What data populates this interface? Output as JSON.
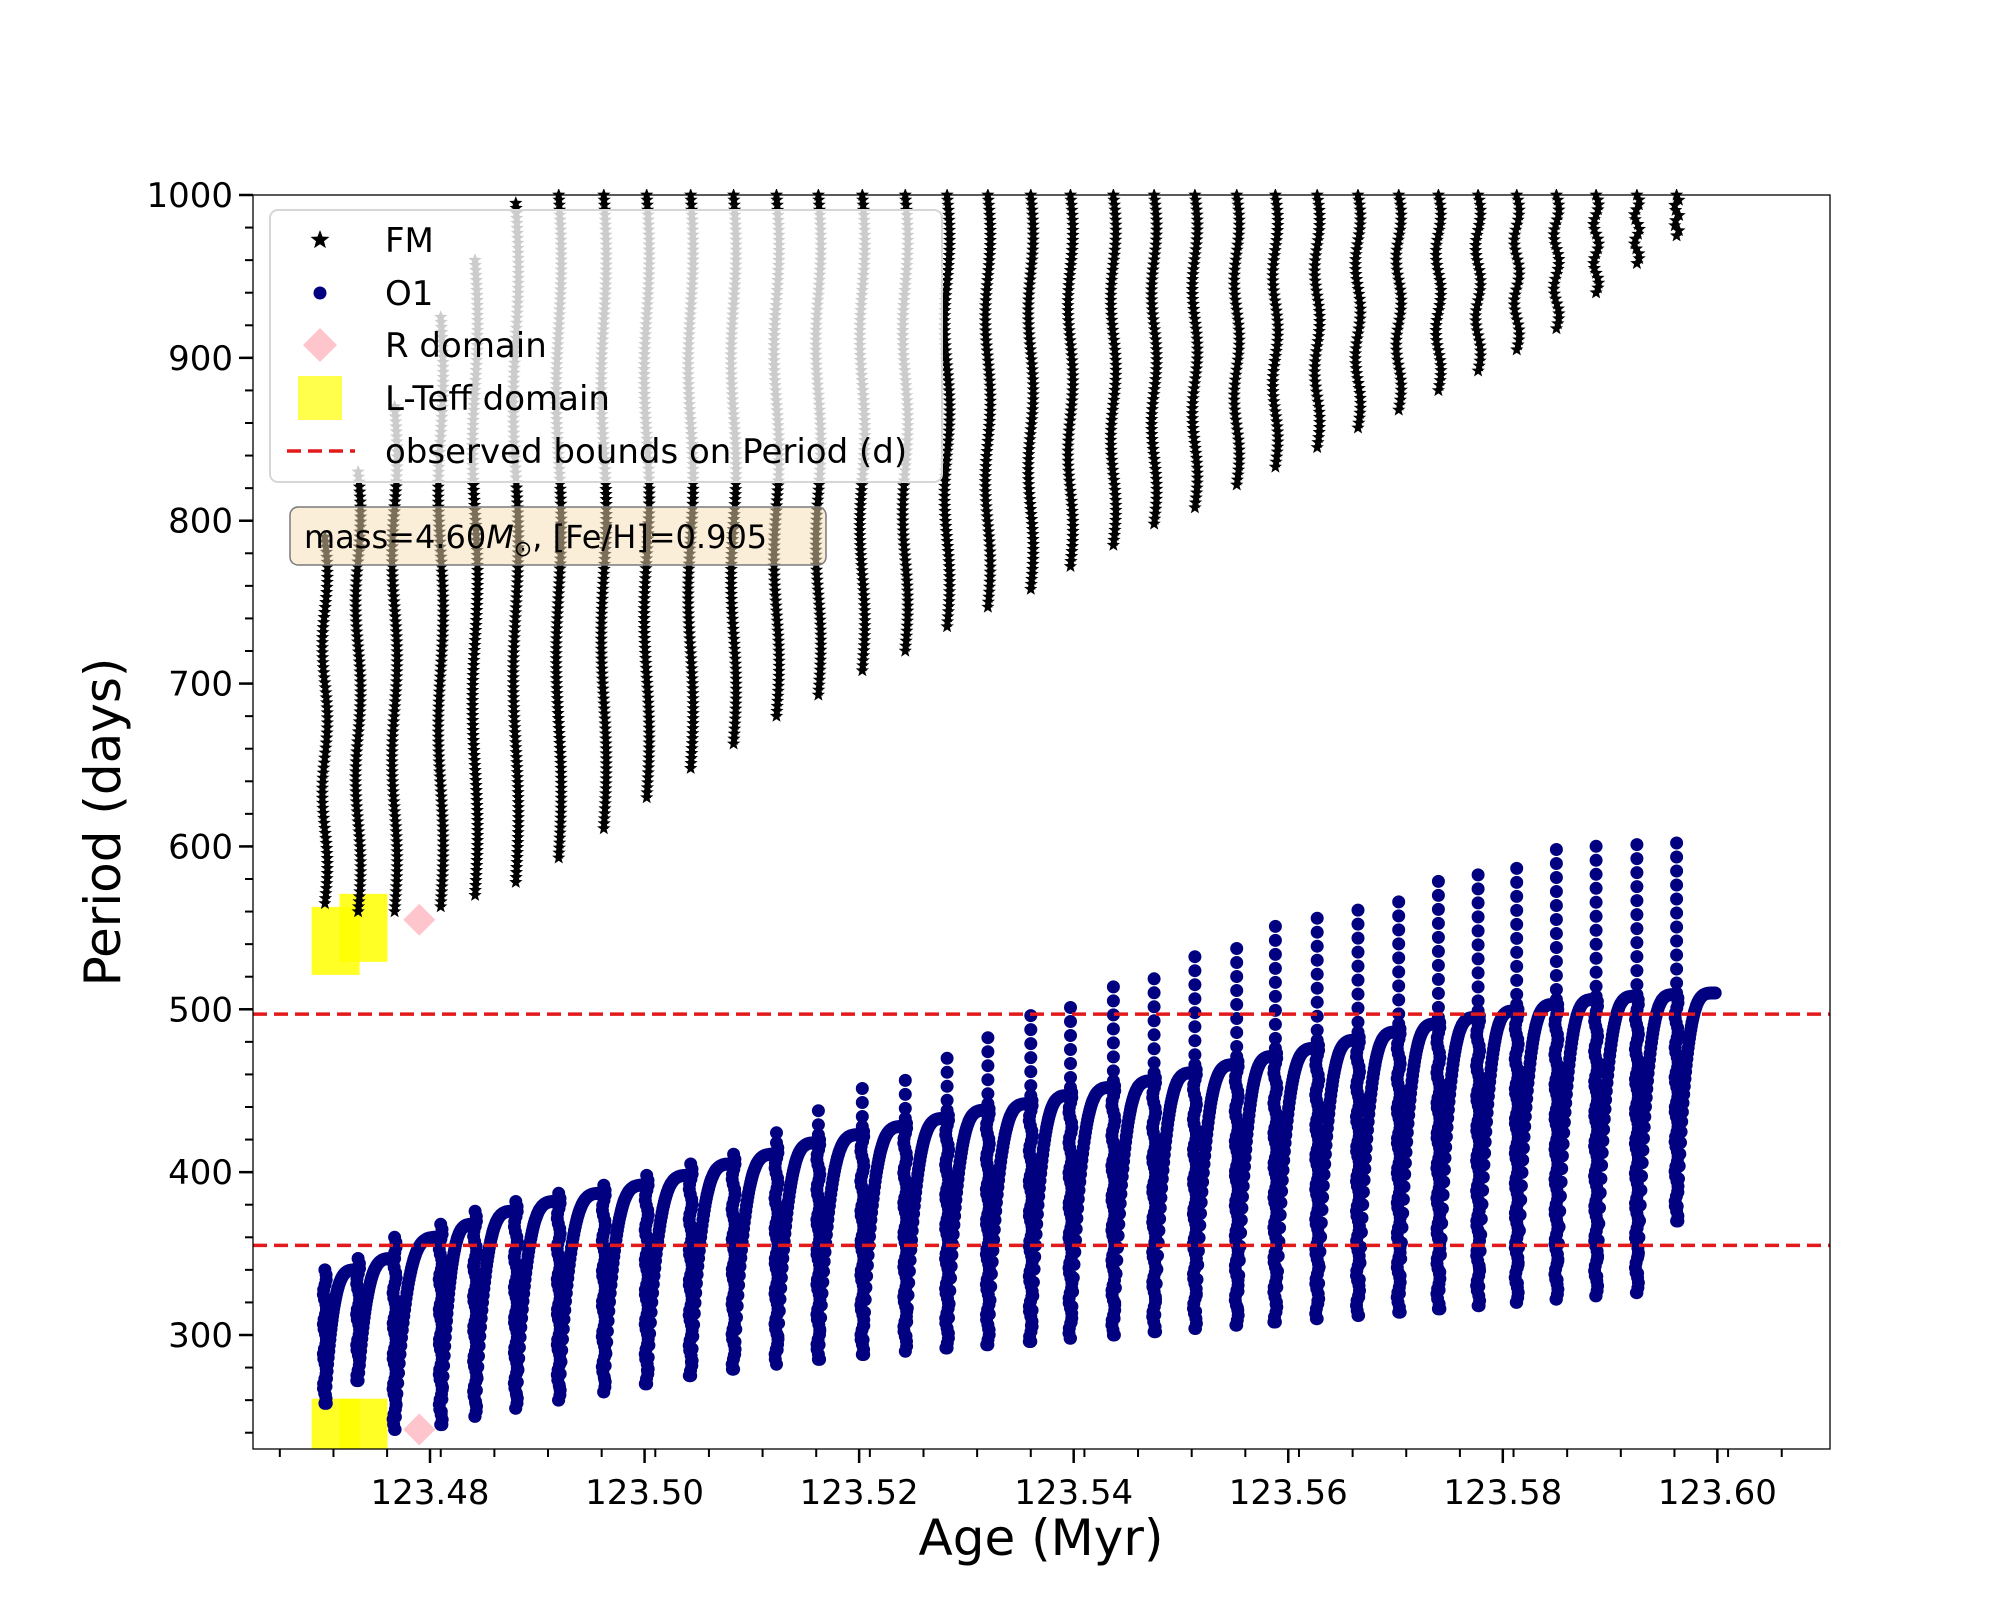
{
  "chart_data": {
    "type": "scatter",
    "xlabel": "Age (Myr)",
    "ylabel": "Period (days)",
    "xlim": [
      123.4635,
      123.6105
    ],
    "ylim": [
      230,
      1000
    ],
    "x_ticks": [
      123.48,
      123.5,
      123.52,
      123.54,
      123.56,
      123.58,
      123.6
    ],
    "x_tick_labels": [
      "123.48",
      "123.50",
      "123.52",
      "123.54",
      "123.56",
      "123.58",
      "123.60"
    ],
    "y_ticks": [
      300,
      400,
      500,
      600,
      700,
      800,
      900,
      1000
    ],
    "y_tick_labels": [
      "300",
      "400",
      "500",
      "600",
      "700",
      "800",
      "900",
      "1000"
    ],
    "legend_position": "top-left",
    "annotation": {
      "text_prefix": "mass=4.60",
      "text_symbol": "M",
      "text_subscript": "⊙",
      "text_suffix": ", [Fe/H]=0.905"
    },
    "observed_bounds": {
      "label": "observed bounds on Period (d)",
      "lower": 355,
      "upper": 497,
      "color": "#e31a1c"
    },
    "series": [
      {
        "name": "FM",
        "marker": "star",
        "color": "#000000",
        "note_overlap_color": "#cccccc",
        "loops": [
          {
            "x": 123.4702,
            "min": 565,
            "max": 790
          },
          {
            "x": 123.4733,
            "min": 560,
            "max": 830
          },
          {
            "x": 123.4767,
            "min": 560,
            "max": 870
          },
          {
            "x": 123.481,
            "min": 563,
            "max": 925
          },
          {
            "x": 123.4842,
            "min": 570,
            "max": 960
          },
          {
            "x": 123.488,
            "min": 578,
            "max": 995
          },
          {
            "x": 123.492,
            "min": 593,
            "max": 1000
          },
          {
            "x": 123.4962,
            "min": 611,
            "max": 1000
          },
          {
            "x": 123.5002,
            "min": 630,
            "max": 1000
          },
          {
            "x": 123.5043,
            "min": 648,
            "max": 1000
          },
          {
            "x": 123.5083,
            "min": 663,
            "max": 1000
          },
          {
            "x": 123.5123,
            "min": 680,
            "max": 1000
          },
          {
            "x": 123.5162,
            "min": 693,
            "max": 1000
          },
          {
            "x": 123.5203,
            "min": 708,
            "max": 1000
          },
          {
            "x": 123.5243,
            "min": 720,
            "max": 1000
          },
          {
            "x": 123.5282,
            "min": 735,
            "max": 1000
          },
          {
            "x": 123.532,
            "min": 747,
            "max": 1000
          },
          {
            "x": 123.536,
            "min": 758,
            "max": 1000
          },
          {
            "x": 123.5397,
            "min": 772,
            "max": 1000
          },
          {
            "x": 123.5437,
            "min": 785,
            "max": 1000
          },
          {
            "x": 123.5475,
            "min": 798,
            "max": 1000
          },
          {
            "x": 123.5513,
            "min": 808,
            "max": 1000
          },
          {
            "x": 123.5552,
            "min": 822,
            "max": 1000
          },
          {
            "x": 123.5588,
            "min": 833,
            "max": 1000
          },
          {
            "x": 123.5627,
            "min": 845,
            "max": 1000
          },
          {
            "x": 123.5665,
            "min": 857,
            "max": 1000
          },
          {
            "x": 123.5703,
            "min": 868,
            "max": 1000
          },
          {
            "x": 123.574,
            "min": 880,
            "max": 1000
          },
          {
            "x": 123.5777,
            "min": 892,
            "max": 1000
          },
          {
            "x": 123.5813,
            "min": 905,
            "max": 1000
          },
          {
            "x": 123.585,
            "min": 918,
            "max": 1000
          },
          {
            "x": 123.5887,
            "min": 940,
            "max": 1000
          },
          {
            "x": 123.5925,
            "min": 958,
            "max": 1000
          },
          {
            "x": 123.5962,
            "min": 975,
            "max": 1000
          }
        ]
      },
      {
        "name": "O1",
        "marker": "circle",
        "color": "#000080",
        "loops": [
          {
            "x0": 123.4702,
            "x1": 123.4733,
            "min": 258,
            "max": 340,
            "spike": 315
          },
          {
            "x0": 123.4733,
            "x1": 123.4767,
            "min": 272,
            "max": 347,
            "spike": 345
          },
          {
            "x0": 123.4767,
            "x1": 123.481,
            "min": 242,
            "max": 360,
            "spike": 357
          },
          {
            "x0": 123.481,
            "x1": 123.4842,
            "min": 245,
            "max": 368,
            "spike": 366
          },
          {
            "x0": 123.4842,
            "x1": 123.488,
            "min": 250,
            "max": 376,
            "spike": 374
          },
          {
            "x0": 123.488,
            "x1": 123.492,
            "min": 255,
            "max": 382,
            "spike": 380
          },
          {
            "x0": 123.492,
            "x1": 123.4962,
            "min": 260,
            "max": 387,
            "spike": 385
          },
          {
            "x0": 123.4962,
            "x1": 123.5002,
            "min": 265,
            "max": 392,
            "spike": 390
          },
          {
            "x0": 123.5002,
            "x1": 123.5043,
            "min": 270,
            "max": 398,
            "spike": 395
          },
          {
            "x0": 123.5043,
            "x1": 123.5083,
            "min": 275,
            "max": 405,
            "spike": 404
          },
          {
            "x0": 123.5083,
            "x1": 123.5123,
            "min": 279,
            "max": 411,
            "spike": 413
          },
          {
            "x0": 123.5123,
            "x1": 123.5162,
            "min": 282,
            "max": 418,
            "spike": 427
          },
          {
            "x0": 123.5162,
            "x1": 123.5203,
            "min": 285,
            "max": 423,
            "spike": 440
          },
          {
            "x0": 123.5203,
            "x1": 123.5243,
            "min": 288,
            "max": 428,
            "spike": 453
          },
          {
            "x0": 123.5243,
            "x1": 123.5282,
            "min": 290,
            "max": 433,
            "spike": 464
          },
          {
            "x0": 123.5282,
            "x1": 123.532,
            "min": 292,
            "max": 438,
            "spike": 476
          },
          {
            "x0": 123.532,
            "x1": 123.536,
            "min": 294,
            "max": 442,
            "spike": 486
          },
          {
            "x0": 123.536,
            "x1": 123.5397,
            "min": 296,
            "max": 447,
            "spike": 497
          },
          {
            "x0": 123.5397,
            "x1": 123.5437,
            "min": 298,
            "max": 452,
            "spike": 508
          },
          {
            "x0": 123.5437,
            "x1": 123.5475,
            "min": 300,
            "max": 456,
            "spike": 517
          },
          {
            "x0": 123.5475,
            "x1": 123.5513,
            "min": 302,
            "max": 461,
            "spike": 526
          },
          {
            "x0": 123.5513,
            "x1": 123.5552,
            "min": 304,
            "max": 466,
            "spike": 535
          },
          {
            "x0": 123.5552,
            "x1": 123.5588,
            "min": 306,
            "max": 471,
            "spike": 542
          },
          {
            "x0": 123.5588,
            "x1": 123.5627,
            "min": 308,
            "max": 476,
            "spike": 551
          },
          {
            "x0": 123.5627,
            "x1": 123.5665,
            "min": 310,
            "max": 481,
            "spike": 559
          },
          {
            "x0": 123.5665,
            "x1": 123.5703,
            "min": 312,
            "max": 486,
            "spike": 566
          },
          {
            "x0": 123.5703,
            "x1": 123.574,
            "min": 314,
            "max": 491,
            "spike": 574
          },
          {
            "x0": 123.574,
            "x1": 123.5777,
            "min": 316,
            "max": 495,
            "spike": 582
          },
          {
            "x0": 123.5777,
            "x1": 123.5813,
            "min": 318,
            "max": 499,
            "spike": 588
          },
          {
            "x0": 123.5813,
            "x1": 123.585,
            "min": 320,
            "max": 503,
            "spike": 594
          },
          {
            "x0": 123.585,
            "x1": 123.5887,
            "min": 322,
            "max": 506,
            "spike": 599
          },
          {
            "x0": 123.5887,
            "x1": 123.5925,
            "min": 324,
            "max": 508,
            "spike": 602
          },
          {
            "x0": 123.5925,
            "x1": 123.5962,
            "min": 326,
            "max": 509,
            "spike": 605
          },
          {
            "x0": 123.5962,
            "x1": 123.5998,
            "min": 370,
            "max": 510,
            "spike": 606
          }
        ]
      },
      {
        "name": "R domain",
        "marker": "diamond",
        "color": "#ffb6c1",
        "points": [
          {
            "x": 123.479,
            "y": 555
          },
          {
            "x": 123.479,
            "y": 242
          }
        ]
      },
      {
        "name": "L-Teff domain",
        "marker": "square",
        "color": "#ffff00",
        "points": [
          {
            "x": 123.4712,
            "y": 542
          },
          {
            "x": 123.4738,
            "y": 550
          },
          {
            "x": 123.4712,
            "y": 240
          },
          {
            "x": 123.4738,
            "y": 240
          }
        ]
      }
    ]
  }
}
